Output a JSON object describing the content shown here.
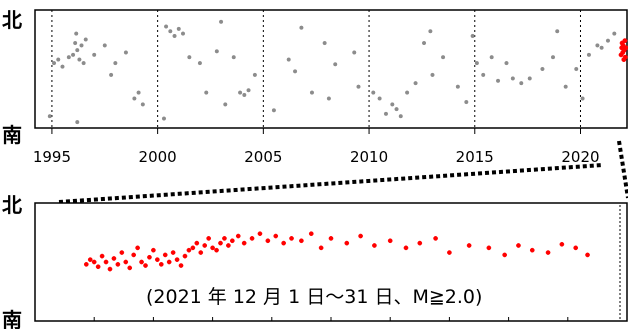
{
  "chart_data": [
    {
      "type": "scatter",
      "title": "",
      "xlabel": "",
      "ylabel": "",
      "y_top_label": "北",
      "y_bottom_label": "南",
      "x_ticks": [
        "1995",
        "2000",
        "2005",
        "2010",
        "2015",
        "2020"
      ],
      "xlim": [
        1994.2,
        2022.2
      ],
      "ylim": [
        0,
        1
      ],
      "grid": "vertical-dashed-at-5-year-ticks",
      "series": [
        {
          "color": "#8c8c8c",
          "points": [
            [
              1995.1,
              0.55
            ],
            [
              1995.3,
              0.58
            ],
            [
              1995.5,
              0.52
            ],
            [
              1995.8,
              0.6
            ],
            [
              1996.0,
              0.62
            ],
            [
              1996.1,
              0.72
            ],
            [
              1996.15,
              0.8
            ],
            [
              1996.2,
              0.66
            ],
            [
              1996.3,
              0.58
            ],
            [
              1996.4,
              0.7
            ],
            [
              1996.5,
              0.55
            ],
            [
              1996.6,
              0.75
            ],
            [
              1997.0,
              0.62
            ],
            [
              1997.5,
              0.7
            ],
            [
              1998.0,
              0.55
            ],
            [
              1998.5,
              0.64
            ],
            [
              1998.9,
              0.25
            ],
            [
              1999.1,
              0.3
            ],
            [
              1999.3,
              0.2
            ],
            [
              1996.2,
              0.05
            ],
            [
              1994.9,
              0.1
            ],
            [
              2000.4,
              0.86
            ],
            [
              2000.6,
              0.82
            ],
            [
              2000.8,
              0.78
            ],
            [
              2001.0,
              0.84
            ],
            [
              2001.2,
              0.8
            ],
            [
              2001.5,
              0.6
            ],
            [
              2002.0,
              0.55
            ],
            [
              2002.3,
              0.3
            ],
            [
              2002.8,
              0.65
            ],
            [
              2003.2,
              0.2
            ],
            [
              2003.6,
              0.6
            ],
            [
              2003.9,
              0.3
            ],
            [
              2004.1,
              0.28
            ],
            [
              2004.3,
              0.32
            ],
            [
              2004.6,
              0.45
            ],
            [
              2005.5,
              0.15
            ],
            [
              2006.2,
              0.58
            ],
            [
              2006.5,
              0.48
            ],
            [
              2007.3,
              0.3
            ],
            [
              2007.9,
              0.72
            ],
            [
              2008.4,
              0.54
            ],
            [
              2009.3,
              0.64
            ],
            [
              2009.5,
              0.35
            ],
            [
              2010.2,
              0.3
            ],
            [
              2010.5,
              0.25
            ],
            [
              2010.8,
              0.12
            ],
            [
              2011.1,
              0.2
            ],
            [
              2011.3,
              0.16
            ],
            [
              2011.5,
              0.1
            ],
            [
              2011.8,
              0.3
            ],
            [
              2012.2,
              0.38
            ],
            [
              2012.6,
              0.72
            ],
            [
              2013.0,
              0.45
            ],
            [
              2013.5,
              0.6
            ],
            [
              2014.2,
              0.35
            ],
            [
              2014.6,
              0.22
            ],
            [
              2015.1,
              0.55
            ],
            [
              2015.4,
              0.45
            ],
            [
              2015.8,
              0.6
            ],
            [
              2016.1,
              0.4
            ],
            [
              2016.5,
              0.55
            ],
            [
              2016.8,
              0.42
            ],
            [
              2017.2,
              0.38
            ],
            [
              2017.6,
              0.42
            ],
            [
              2018.2,
              0.5
            ],
            [
              2018.7,
              0.6
            ],
            [
              2019.3,
              0.35
            ],
            [
              2019.8,
              0.5
            ],
            [
              2020.4,
              0.62
            ],
            [
              2020.8,
              0.7
            ],
            [
              2021.0,
              0.68
            ],
            [
              2021.3,
              0.74
            ],
            [
              2021.6,
              0.8
            ],
            [
              2020.1,
              0.25
            ],
            [
              2000.3,
              0.08
            ],
            [
              1997.8,
              0.45
            ],
            [
              2003.0,
              0.9
            ],
            [
              2006.8,
              0.85
            ],
            [
              2008.1,
              0.25
            ],
            [
              2012.9,
              0.82
            ],
            [
              2018.9,
              0.82
            ],
            [
              2014.9,
              0.78
            ]
          ]
        },
        {
          "color": "#ff0000",
          "points": [
            [
              2021.92,
              0.62
            ],
            [
              2021.95,
              0.68
            ],
            [
              2021.97,
              0.72
            ],
            [
              2022.0,
              0.64
            ],
            [
              2022.02,
              0.7
            ],
            [
              2022.05,
              0.58
            ],
            [
              2022.07,
              0.66
            ],
            [
              2022.1,
              0.74
            ],
            [
              2022.12,
              0.6
            ],
            [
              2022.15,
              0.68
            ]
          ]
        }
      ]
    },
    {
      "type": "scatter",
      "title": "",
      "xlabel": "",
      "ylabel": "",
      "y_top_label": "北",
      "y_bottom_label": "南",
      "annotation": "(2021 年 12 月 1 日～31 日、M≧2.0)",
      "xlim": [
        1,
        31
      ],
      "ylim": [
        0,
        1
      ],
      "series": [
        {
          "color": "#ff0000",
          "points": [
            [
              3.6,
              0.48
            ],
            [
              3.8,
              0.52
            ],
            [
              4.0,
              0.5
            ],
            [
              4.2,
              0.46
            ],
            [
              4.4,
              0.55
            ],
            [
              4.6,
              0.5
            ],
            [
              4.8,
              0.44
            ],
            [
              5.0,
              0.53
            ],
            [
              5.2,
              0.48
            ],
            [
              5.4,
              0.58
            ],
            [
              5.6,
              0.5
            ],
            [
              5.8,
              0.45
            ],
            [
              6.0,
              0.56
            ],
            [
              6.2,
              0.62
            ],
            [
              6.4,
              0.5
            ],
            [
              6.6,
              0.47
            ],
            [
              6.8,
              0.54
            ],
            [
              7.0,
              0.6
            ],
            [
              7.2,
              0.52
            ],
            [
              7.4,
              0.48
            ],
            [
              7.6,
              0.56
            ],
            [
              7.8,
              0.5
            ],
            [
              8.0,
              0.58
            ],
            [
              8.2,
              0.52
            ],
            [
              8.4,
              0.47
            ],
            [
              8.6,
              0.55
            ],
            [
              8.8,
              0.6
            ],
            [
              9.0,
              0.62
            ],
            [
              9.2,
              0.66
            ],
            [
              9.4,
              0.58
            ],
            [
              9.6,
              0.64
            ],
            [
              9.8,
              0.7
            ],
            [
              10.0,
              0.62
            ],
            [
              10.2,
              0.6
            ],
            [
              10.4,
              0.66
            ],
            [
              10.6,
              0.7
            ],
            [
              10.8,
              0.64
            ],
            [
              11.0,
              0.68
            ],
            [
              11.3,
              0.72
            ],
            [
              11.6,
              0.66
            ],
            [
              12.0,
              0.7
            ],
            [
              12.4,
              0.74
            ],
            [
              12.8,
              0.68
            ],
            [
              13.2,
              0.72
            ],
            [
              13.6,
              0.66
            ],
            [
              14.0,
              0.7
            ],
            [
              14.5,
              0.68
            ],
            [
              15.0,
              0.74
            ],
            [
              15.5,
              0.62
            ],
            [
              16.0,
              0.7
            ],
            [
              16.8,
              0.66
            ],
            [
              17.5,
              0.72
            ],
            [
              18.2,
              0.64
            ],
            [
              19.0,
              0.68
            ],
            [
              19.8,
              0.62
            ],
            [
              20.5,
              0.66
            ],
            [
              21.3,
              0.7
            ],
            [
              22.0,
              0.58
            ],
            [
              23.0,
              0.64
            ],
            [
              24.0,
              0.62
            ],
            [
              24.8,
              0.56
            ],
            [
              25.5,
              0.64
            ],
            [
              26.2,
              0.6
            ],
            [
              27.0,
              0.58
            ],
            [
              27.7,
              0.65
            ],
            [
              28.4,
              0.62
            ],
            [
              29.0,
              0.56
            ]
          ]
        }
      ]
    }
  ]
}
